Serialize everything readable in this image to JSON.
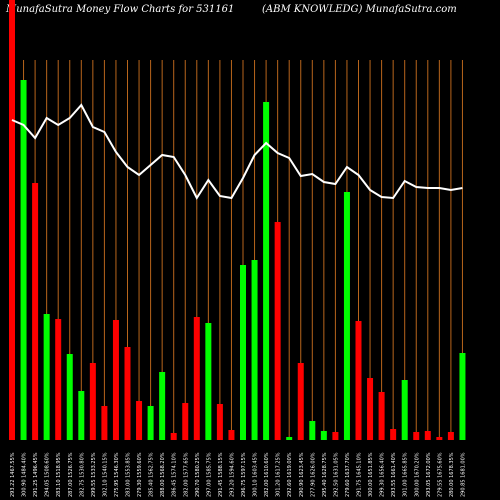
{
  "chart_data": {
    "type": "bar",
    "title": "MunafaSutra  Money Flow  Charts for 531161",
    "subtitle": "(ABM KNOWLEDG) MunafaSutra.com",
    "categories": [
      "293.22 1467.55%",
      "300.90 1484.40%",
      "291.25 1496.45%",
      "294.05 1508.60%",
      "283.10 1518.95%",
      "287.00 1526.75%",
      "282.75 1530.80%",
      "299.55 1533.25%",
      "302.10 1540.15%",
      "275.95 1546.30%",
      "283.00 1553.85%",
      "279.30 1559.60%",
      "285.40 1562.75%",
      "288.00 1568.20%",
      "286.45 1574.10%",
      "282.00 1577.65%",
      "290.70 1580.25%",
      "297.00 1585.75%",
      "291.45 1588.15%",
      "293.20 1594.60%",
      "296.75 1597.15%",
      "300.10 1603.45%",
      "282.00 1610.60%",
      "301.20 1617.25%",
      "292.60 1619.00%",
      "290.90 1623.45%",
      "277.90 1626.00%",
      "295.40 1628.75%",
      "292.50 1631.05%",
      "279.60 1637.70%",
      "291.75 1645.10%",
      "300.00 1651.85%",
      "299.30 1656.40%",
      "293.55 1661.40%",
      "301.00 1665.85%",
      "300.00 1670.20%",
      "293.05 1672.00%",
      "279.55 1675.60%",
      "280.00 1678.35%",
      "290.85 1681.00%"
    ],
    "values": [
      440,
      360,
      257,
      126,
      121,
      86,
      49,
      77,
      34,
      120,
      93,
      39,
      34,
      68,
      7,
      37,
      123,
      117,
      36,
      10,
      175,
      180,
      338,
      218,
      3,
      77,
      19,
      9,
      8,
      248,
      119,
      62,
      48,
      11,
      60,
      8,
      9,
      3,
      8,
      87
    ],
    "bar_colors": [
      "#ff0000",
      "#00ff00",
      "#ff0000",
      "#00ff00",
      "#ff0000",
      "#00ff00",
      "#00ff00",
      "#ff0000",
      "#ff0000",
      "#ff0000",
      "#ff0000",
      "#ff0000",
      "#00ff00",
      "#00ff00",
      "#ff0000",
      "#ff0000",
      "#ff0000",
      "#00ff00",
      "#ff0000",
      "#ff0000",
      "#00ff00",
      "#00ff00",
      "#00ff00",
      "#ff0000",
      "#00ff00",
      "#ff0000",
      "#00ff00",
      "#00ff00",
      "#ff0000",
      "#00ff00",
      "#ff0000",
      "#ff0000",
      "#ff0000",
      "#ff0000",
      "#00ff00",
      "#ff0000",
      "#ff0000",
      "#ff0000",
      "#ff0000",
      "#00ff00"
    ],
    "line": [
      320,
      315,
      302,
      322,
      315,
      322,
      335,
      313,
      308,
      288,
      273,
      265,
      275,
      285,
      283,
      265,
      242,
      260,
      244,
      242,
      262,
      285,
      297,
      287,
      282,
      264,
      266,
      258,
      256,
      273,
      265,
      250,
      243,
      242,
      259,
      253,
      252,
      252,
      250,
      252
    ],
    "ylim": [
      0,
      440
    ],
    "line_color": "#ffffff",
    "grid_color": "#b8651c"
  }
}
